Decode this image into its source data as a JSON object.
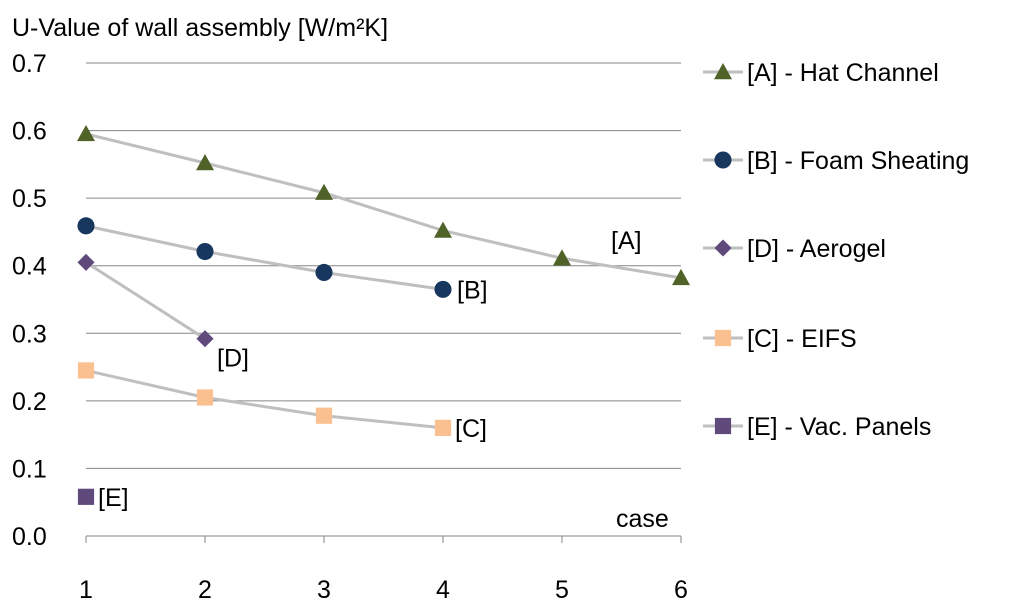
{
  "chart_data": {
    "type": "line",
    "ylabel": "U-Value of wall assembly [W/m²K]",
    "xlabel": "case",
    "xlim": [
      1,
      6
    ],
    "ylim": [
      0.0,
      0.7
    ],
    "x_ticks": [
      "1",
      "2",
      "3",
      "4",
      "5",
      "6"
    ],
    "y_ticks": [
      "0.0",
      "0.1",
      "0.2",
      "0.3",
      "0.4",
      "0.5",
      "0.6",
      "0.7"
    ],
    "grid": true,
    "legend_position": "right",
    "series": [
      {
        "name": "[A] - Hat Channel",
        "label": "[A]",
        "marker": "triangle",
        "color": "#4f6228",
        "x": [
          1,
          2,
          3,
          4,
          5,
          6
        ],
        "y": [
          0.595,
          0.552,
          0.508,
          0.452,
          0.411,
          0.382
        ]
      },
      {
        "name": "[B] - Foam Sheating",
        "label": "[B]",
        "marker": "circle",
        "color": "#17375e",
        "x": [
          1,
          2,
          3,
          4
        ],
        "y": [
          0.459,
          0.421,
          0.39,
          0.365
        ]
      },
      {
        "name": "[D] - Aerogel",
        "label": "[D]",
        "marker": "diamond",
        "color": "#604a7b",
        "x": [
          1,
          2
        ],
        "y": [
          0.405,
          0.292
        ]
      },
      {
        "name": "[C] - EIFS",
        "label": "[C]",
        "marker": "square",
        "color": "#fac090",
        "x": [
          1,
          2,
          3,
          4
        ],
        "y": [
          0.245,
          0.205,
          0.178,
          0.16
        ]
      },
      {
        "name": "[E] - Vac. Panels",
        "label": "[E]",
        "marker": "square",
        "color": "#604a7b",
        "x": [
          1
        ],
        "y": [
          0.058
        ]
      }
    ],
    "line_color": "#bfbfbf",
    "grid_color": "#868686"
  }
}
